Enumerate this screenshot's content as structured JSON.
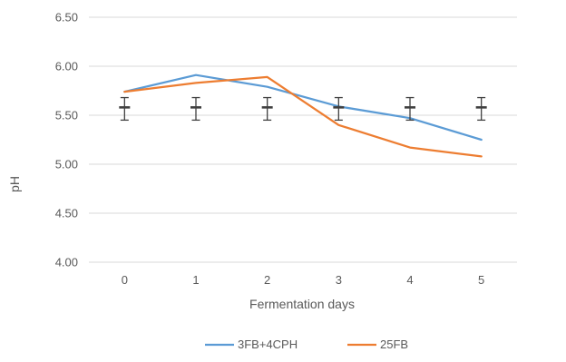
{
  "chart_data": {
    "type": "line",
    "title": "",
    "xlabel": "Fermentation days",
    "ylabel": "pH",
    "categories": [
      "0",
      "1",
      "2",
      "3",
      "4",
      "5"
    ],
    "ylim": [
      4.0,
      6.5
    ],
    "yticks": [
      "4.00",
      "4.50",
      "5.00",
      "5.50",
      "6.00",
      "6.50"
    ],
    "grid": true,
    "legend_position": "bottom",
    "series": [
      {
        "name": "3FB+4CPH",
        "color": "#5b9bd5",
        "values": [
          5.74,
          5.91,
          5.79,
          5.59,
          5.47,
          5.25
        ]
      },
      {
        "name": "25FB",
        "color": "#ed7d31",
        "values": [
          5.74,
          5.83,
          5.89,
          5.4,
          5.17,
          5.08
        ]
      }
    ],
    "error_bars": {
      "color": "#404040",
      "center": [
        5.58,
        5.58,
        5.58,
        5.58,
        5.58,
        5.58
      ],
      "low": [
        5.45,
        5.45,
        5.45,
        5.45,
        5.45,
        5.45
      ],
      "high": [
        5.68,
        5.68,
        5.68,
        5.68,
        5.68,
        5.68
      ]
    }
  }
}
